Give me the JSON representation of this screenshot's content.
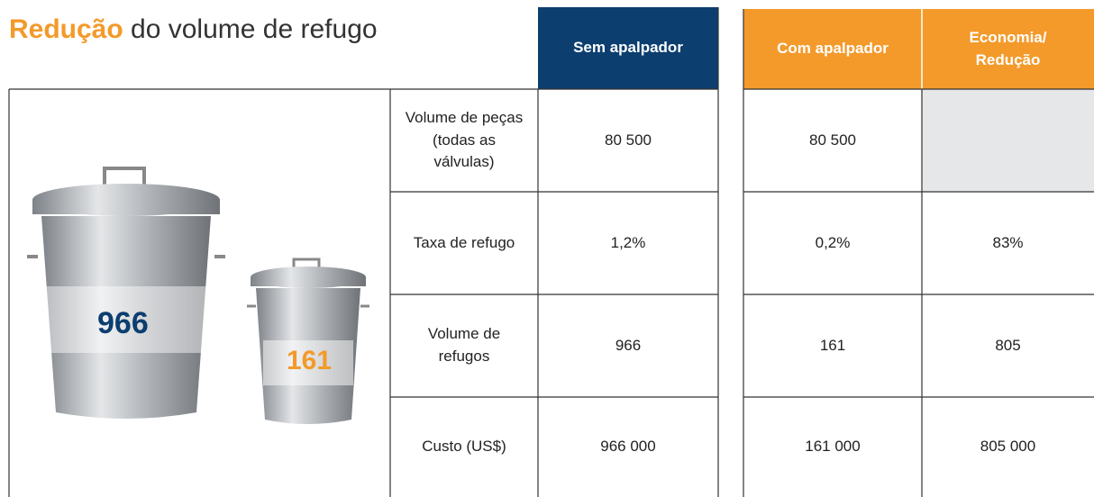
{
  "title": {
    "highlight": "Redução",
    "rest": "do volume de refugo"
  },
  "columns": {
    "without": "Sem apalpador",
    "with": "Com apalpador",
    "savings": "Economia/ Redução"
  },
  "bins": {
    "without": "966",
    "with": "161"
  },
  "rows": [
    {
      "label": "Volume de peças (todas as válvulas)",
      "without": "80 500",
      "with": "80 500"
    },
    {
      "label": "Taxa de refugo",
      "without": "1,2%",
      "with": "0,2%",
      "savings": "83%"
    },
    {
      "label": "Volume de refugos",
      "without": "966",
      "with": "161",
      "savings": "805"
    },
    {
      "label": "Custo (US$)",
      "without": "966 000",
      "with": "161 000",
      "savings": "805 000"
    }
  ]
}
